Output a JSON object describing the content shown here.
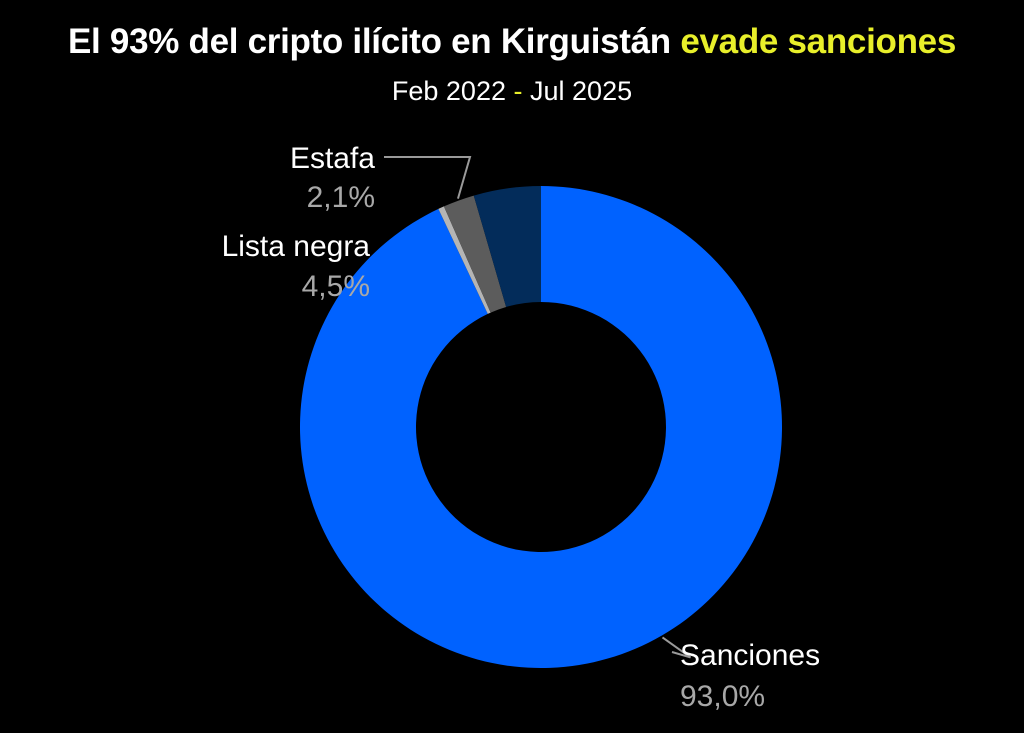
{
  "title": {
    "main": "El 93% del cripto ilícito en Kirguistán",
    "highlight": "evade sanciones"
  },
  "subtitle": {
    "start": "Feb 2022",
    "separator": "-",
    "end": "Jul 2025"
  },
  "colors": {
    "background": "#000000",
    "accent": "#e8ef2a",
    "sanciones": "#0062ff",
    "lista_negra": "#032c5a",
    "estafa": "#5c5c5c",
    "otros": "#b5b5b5"
  },
  "chart_data": {
    "type": "pie",
    "donut": true,
    "title": "El 93% del cripto ilícito en Kirguistán evade sanciones",
    "subtitle": "Feb 2022 - Jul 2025",
    "slices": [
      {
        "label": "Sanciones",
        "value": 93.0,
        "value_label": "93,0%",
        "color": "#0062ff"
      },
      {
        "label": "",
        "value": 0.4,
        "value_label": "",
        "color": "#b5b5b5"
      },
      {
        "label": "Estafa",
        "value": 2.1,
        "value_label": "2,1%",
        "color": "#5c5c5c"
      },
      {
        "label": "Lista negra",
        "value": 4.5,
        "value_label": "4,5%",
        "color": "#032c5a"
      }
    ],
    "legend": "none"
  }
}
